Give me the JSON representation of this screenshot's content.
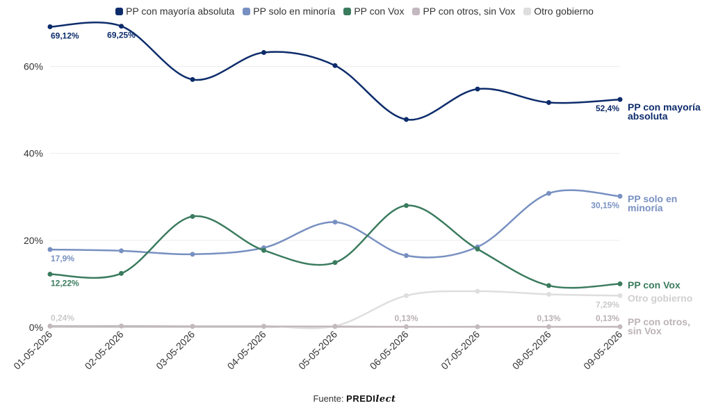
{
  "chart_data": {
    "type": "line",
    "x": [
      "01-05-2026",
      "02-05-2026",
      "03-05-2026",
      "04-05-2026",
      "05-05-2026",
      "06-05-2026",
      "07-05-2026",
      "08-05-2026",
      "09-05-2026"
    ],
    "ylim": [
      0,
      70
    ],
    "yticks": [
      0,
      20,
      40,
      60
    ],
    "ytick_labels": [
      "0%",
      "20%",
      "40%",
      "60%"
    ],
    "grid": true,
    "legend_position": "top",
    "series": [
      {
        "name": "PP con mayoría absoluta",
        "end_label": [
          "PP con mayoría",
          "absoluta"
        ],
        "color": "#0d2c6b",
        "values": [
          69.12,
          69.25,
          57.0,
          63.2,
          60.2,
          47.8,
          54.8,
          51.7,
          52.4
        ],
        "point_labels": [
          {
            "i": 0,
            "text": "69,12%"
          },
          {
            "i": 1,
            "text": "69,25%"
          },
          {
            "i": 8,
            "text": "52,4%"
          }
        ]
      },
      {
        "name": "PP solo en minoría",
        "end_label": [
          "PP solo en",
          "minoría"
        ],
        "color": "#7890c1",
        "values": [
          17.9,
          17.6,
          16.8,
          18.3,
          24.2,
          16.5,
          18.5,
          30.8,
          30.15
        ],
        "point_labels": [
          {
            "i": 0,
            "text": "17,9%"
          },
          {
            "i": 8,
            "text": "30,15%"
          }
        ]
      },
      {
        "name": "PP con Vox",
        "end_label": [
          "PP con Vox"
        ],
        "color": "#3a7b5e",
        "values": [
          12.22,
          12.4,
          25.5,
          17.7,
          14.9,
          28.0,
          18.0,
          9.6,
          10.0
        ],
        "point_labels": [
          {
            "i": 0,
            "text": "12,22%"
          }
        ]
      },
      {
        "name": "PP con otros, sin Vox",
        "end_label": [
          "PP con otros,",
          "sin Vox"
        ],
        "color": "#c2b8bd",
        "values": [
          0.3,
          0.3,
          0.2,
          0.2,
          0.2,
          0.13,
          0.13,
          0.13,
          0.13
        ],
        "point_labels": [
          {
            "i": 5,
            "text": "0,13%"
          },
          {
            "i": 7,
            "text": "0,13%"
          },
          {
            "i": 8,
            "text": "0,13%"
          }
        ]
      },
      {
        "name": "Otro gobierno",
        "end_label": [
          "Otro gobierno"
        ],
        "color": "#dedede",
        "values": [
          0.24,
          0.3,
          0.3,
          0.3,
          0.3,
          7.3,
          8.3,
          7.6,
          7.29
        ],
        "point_labels": [
          {
            "i": 0,
            "text": "0,24%"
          },
          {
            "i": 8,
            "text": "7,29%"
          }
        ]
      }
    ]
  },
  "source": {
    "label": "Fuente:",
    "brand_main": "PREDI",
    "brand_script": "lect"
  }
}
